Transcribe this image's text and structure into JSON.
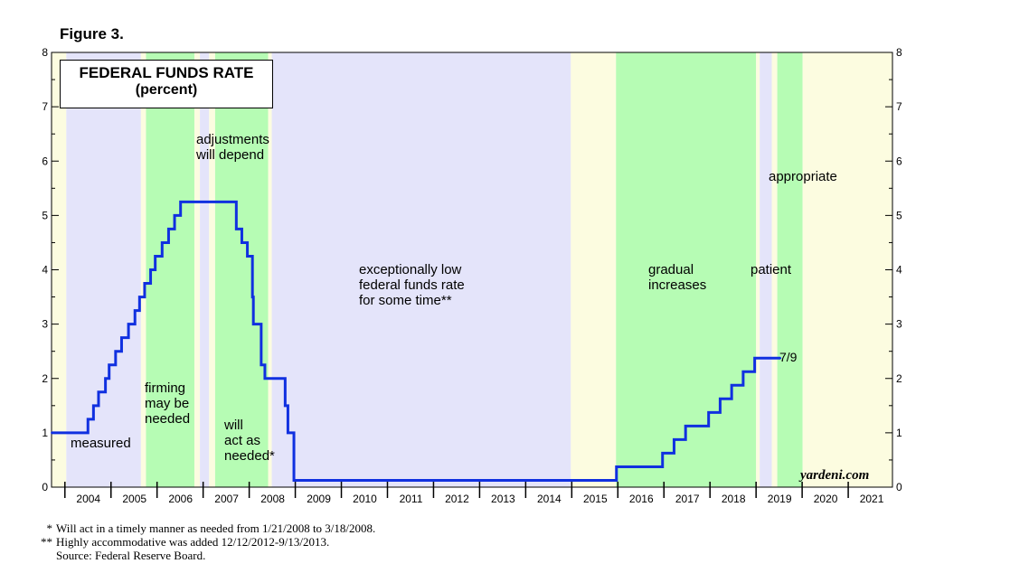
{
  "figure_label": "Figure 3.",
  "colors": {
    "lavender": "#e4e4fa",
    "green": "#b6fcb4",
    "cream": "#fcfce0",
    "line": "#1030e0"
  },
  "chart_data": {
    "type": "line",
    "title": "FEDERAL FUNDS RATE",
    "subtitle": "(percent)",
    "ylim": [
      0,
      8
    ],
    "xlim": [
      2003.7,
      2021.95
    ],
    "y_ticks": [
      "0",
      "1",
      "2",
      "3",
      "4",
      "5",
      "6",
      "7",
      "8"
    ],
    "x_ticks": [
      "2004",
      "2005",
      "2006",
      "2007",
      "2008",
      "2009",
      "2010",
      "2011",
      "2012",
      "2013",
      "2014",
      "2015",
      "2016",
      "2017",
      "2018",
      "2019",
      "2020",
      "2021"
    ],
    "regimes": [
      {
        "start": 2003.7,
        "end": 2004.02,
        "color": "cream"
      },
      {
        "start": 2004.02,
        "end": 2005.64,
        "color": "lavender"
      },
      {
        "start": 2005.64,
        "end": 2005.75,
        "color": "cream"
      },
      {
        "start": 2005.75,
        "end": 2006.8,
        "color": "green"
      },
      {
        "start": 2006.8,
        "end": 2006.92,
        "color": "cream"
      },
      {
        "start": 2006.92,
        "end": 2007.12,
        "color": "lavender"
      },
      {
        "start": 2007.12,
        "end": 2007.25,
        "color": "cream"
      },
      {
        "start": 2007.25,
        "end": 2008.4,
        "color": "green"
      },
      {
        "start": 2008.4,
        "end": 2008.48,
        "color": "cream"
      },
      {
        "start": 2008.48,
        "end": 2014.97,
        "color": "lavender"
      },
      {
        "start": 2014.97,
        "end": 2015.95,
        "color": "cream"
      },
      {
        "start": 2015.95,
        "end": 2018.99,
        "color": "green"
      },
      {
        "start": 2018.99,
        "end": 2019.07,
        "color": "cream"
      },
      {
        "start": 2019.07,
        "end": 2019.33,
        "color": "lavender"
      },
      {
        "start": 2019.33,
        "end": 2019.45,
        "color": "cream"
      },
      {
        "start": 2019.45,
        "end": 2020.0,
        "color": "green"
      },
      {
        "start": 2020.0,
        "end": 2021.95,
        "color": "cream"
      }
    ],
    "series": [
      {
        "name": "Federal Funds Rate",
        "points": [
          [
            2003.7,
            1.0
          ],
          [
            2004.49,
            1.25
          ],
          [
            2004.61,
            1.5
          ],
          [
            2004.72,
            1.75
          ],
          [
            2004.87,
            2.0
          ],
          [
            2004.95,
            2.25
          ],
          [
            2005.09,
            2.5
          ],
          [
            2005.22,
            2.75
          ],
          [
            2005.37,
            3.0
          ],
          [
            2005.51,
            3.25
          ],
          [
            2005.61,
            3.5
          ],
          [
            2005.72,
            3.75
          ],
          [
            2005.85,
            4.0
          ],
          [
            2005.95,
            4.25
          ],
          [
            2006.1,
            4.5
          ],
          [
            2006.24,
            4.75
          ],
          [
            2006.37,
            5.0
          ],
          [
            2006.5,
            5.25
          ],
          [
            2007.71,
            4.75
          ],
          [
            2007.83,
            4.5
          ],
          [
            2007.95,
            4.25
          ],
          [
            2008.06,
            3.5
          ],
          [
            2008.08,
            3.0
          ],
          [
            2008.25,
            2.25
          ],
          [
            2008.33,
            2.0
          ],
          [
            2008.77,
            1.5
          ],
          [
            2008.83,
            1.0
          ],
          [
            2008.96,
            0.125
          ],
          [
            2015.96,
            0.375
          ],
          [
            2016.96,
            0.625
          ],
          [
            2017.21,
            0.875
          ],
          [
            2017.46,
            1.125
          ],
          [
            2017.96,
            1.375
          ],
          [
            2018.21,
            1.625
          ],
          [
            2018.46,
            1.875
          ],
          [
            2018.71,
            2.125
          ],
          [
            2018.96,
            2.375
          ],
          [
            2019.52,
            2.375
          ]
        ]
      }
    ],
    "annotations": [
      {
        "lines": [
          "measured"
        ]
      },
      {
        "lines": [
          "firming",
          "may be",
          "needed"
        ]
      },
      {
        "lines": [
          "adjustments",
          "will depend"
        ]
      },
      {
        "lines": [
          "will",
          "act as",
          "needed*"
        ]
      },
      {
        "lines": [
          "exceptionally low",
          "federal funds rate",
          "for some time**"
        ]
      },
      {
        "lines": [
          "gradual",
          "increases"
        ]
      },
      {
        "lines": [
          "patient"
        ]
      },
      {
        "lines": [
          "appropriate"
        ]
      }
    ],
    "end_label": "7/9"
  },
  "footnotes": [
    {
      "mark": "*",
      "text": "Will act in a timely manner as needed from 1/21/2008 to 3/18/2008."
    },
    {
      "mark": "**",
      "text": "Highly accommodative was added 12/12/2012-9/13/2013."
    }
  ],
  "source": "Source: Federal Reserve Board.",
  "brand": "yardeni.com"
}
